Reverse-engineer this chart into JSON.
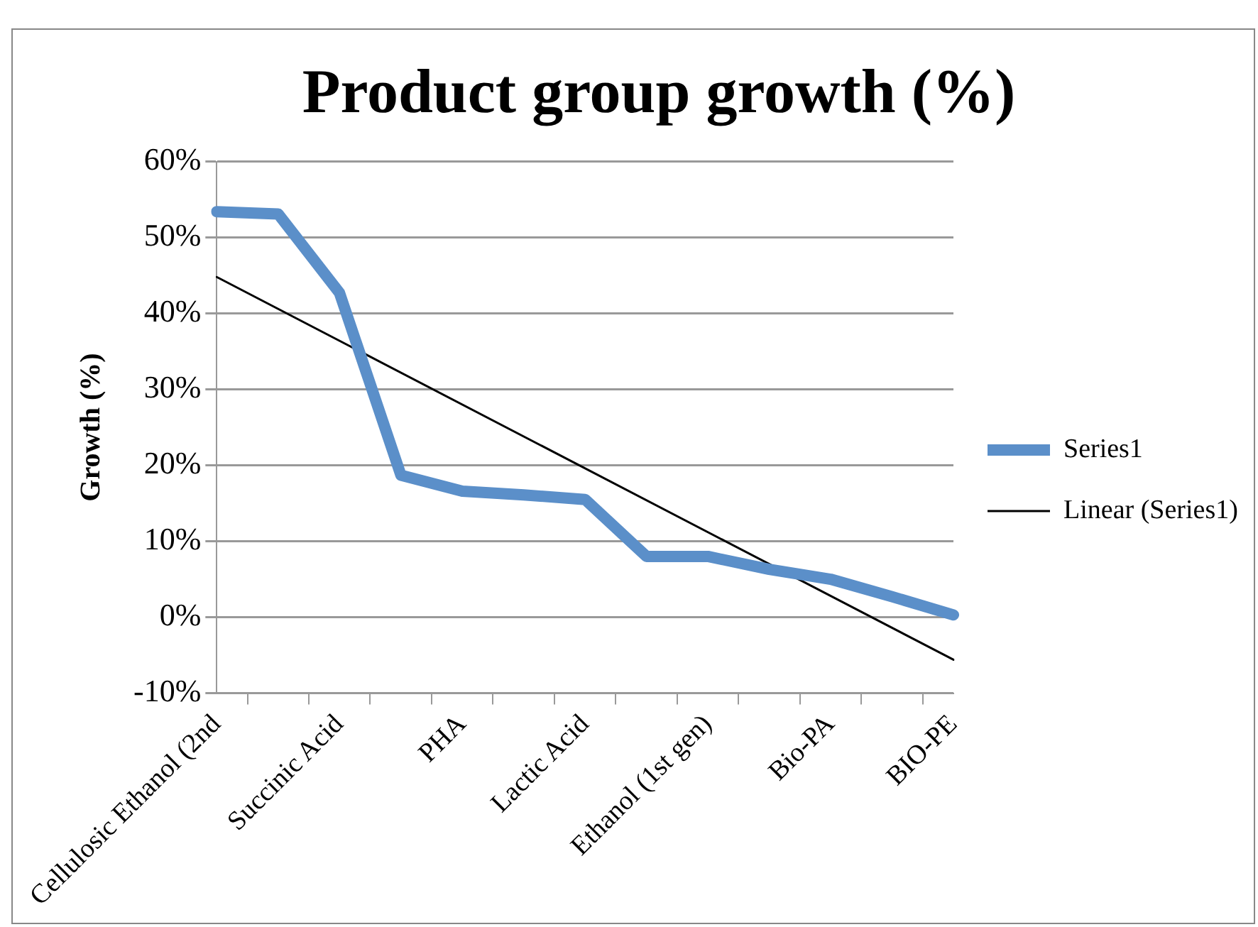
{
  "chart_data": {
    "type": "line",
    "title": "Product group growth (%)",
    "ylabel": "Growth (%)",
    "categories": [
      "Cellulosic Ethanol (2nd",
      null,
      "Succinic Acid",
      null,
      "PHA",
      null,
      "Lactic Acid",
      null,
      "Ethanol (1st gen)",
      null,
      "Bio-PA",
      null,
      "BIO-PE"
    ],
    "series": [
      {
        "name": "Series1",
        "color": "#5b8fc9",
        "values": [
          53.4,
          53.1,
          42.7,
          18.7,
          16.6,
          16.1,
          15.5,
          8.0,
          8.0,
          6.3,
          5.0,
          2.7,
          0.3
        ]
      },
      {
        "name": "Linear (Series1)",
        "color": "#000000",
        "values": [
          44.8,
          null,
          null,
          null,
          null,
          null,
          null,
          null,
          null,
          null,
          null,
          null,
          -5.6
        ]
      }
    ],
    "ylim": [
      -10,
      60
    ],
    "yticks": [
      {
        "value": -10,
        "label": "-10%"
      },
      {
        "value": 0,
        "label": "0%"
      },
      {
        "value": 10,
        "label": "10%"
      },
      {
        "value": 20,
        "label": "20%"
      },
      {
        "value": 30,
        "label": "30%"
      },
      {
        "value": 40,
        "label": "40%"
      },
      {
        "value": 50,
        "label": "50%"
      },
      {
        "value": 60,
        "label": "60%"
      }
    ],
    "grid": "y",
    "legend": "right",
    "marker": "none",
    "line_style": "solid"
  }
}
